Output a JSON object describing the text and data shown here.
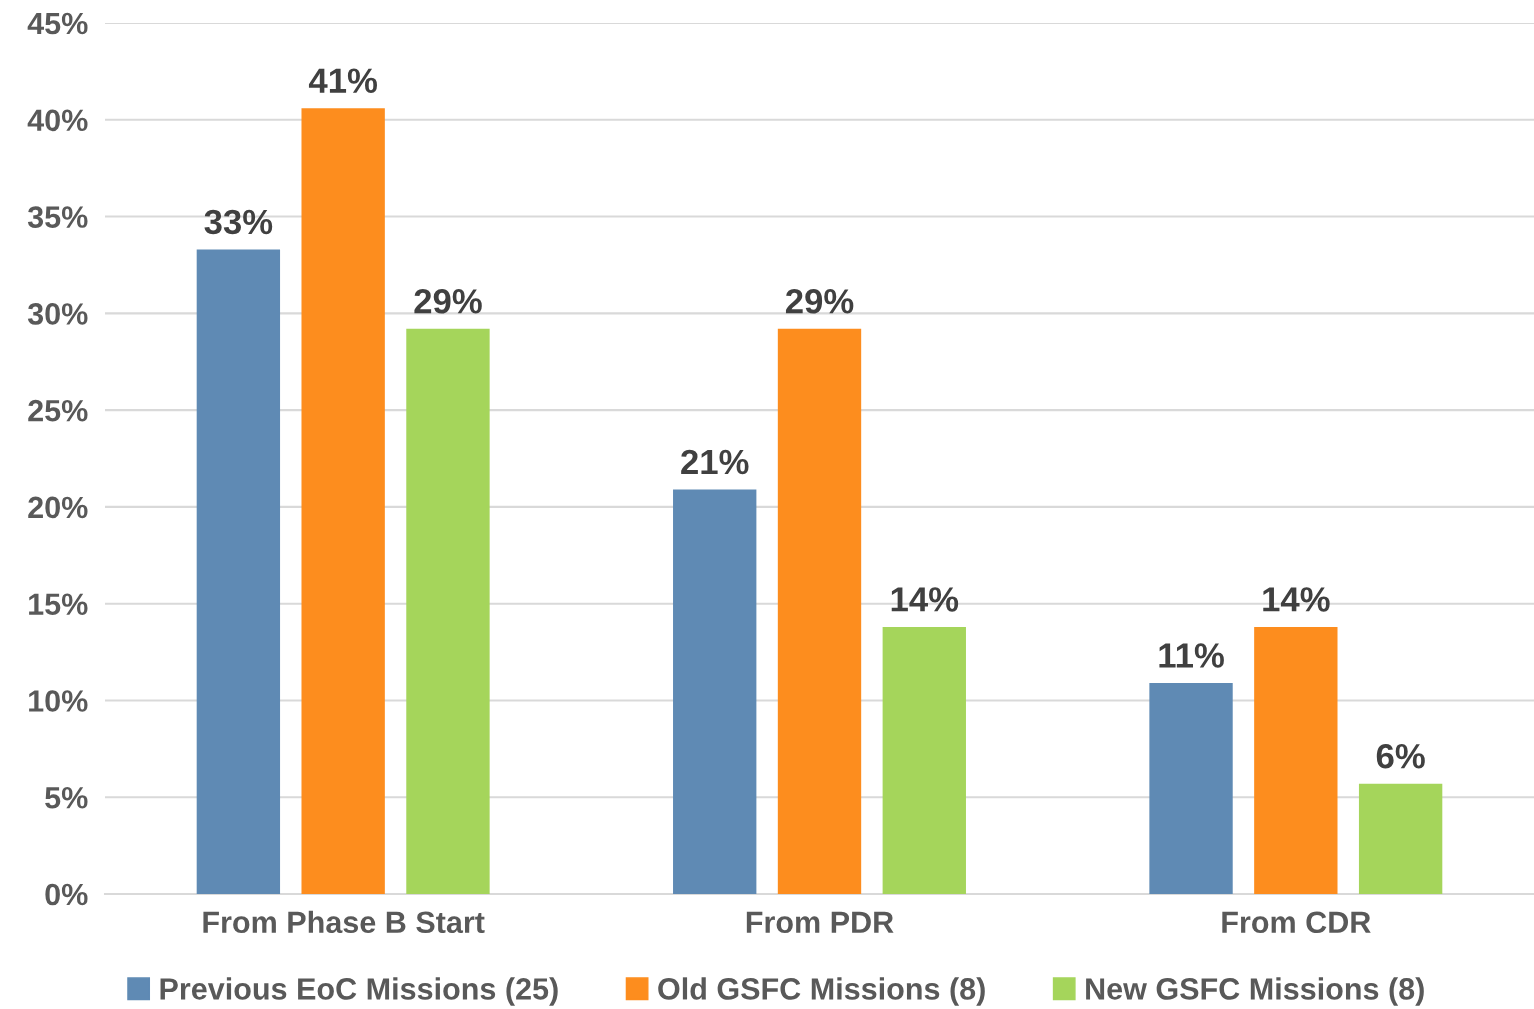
{
  "chart_data": {
    "type": "bar",
    "categories": [
      "From Phase B Start",
      "From PDR",
      "From CDR"
    ],
    "series": [
      {
        "name": "Previous EoC Missions (25)",
        "color": "#5f8ab4",
        "values": [
          33.3,
          20.9,
          10.9
        ],
        "value_labels": [
          "33%",
          "21%",
          "11%"
        ]
      },
      {
        "name": "Old GSFC Missions (8)",
        "color": "#fd8d1e",
        "values": [
          40.6,
          29.2,
          13.8
        ],
        "value_labels": [
          "41%",
          "29%",
          "14%"
        ]
      },
      {
        "name": "New GSFC Missions (8)",
        "color": "#a5d55b",
        "values": [
          29.2,
          13.8,
          5.7
        ],
        "value_labels": [
          "29%",
          "14%",
          "6%"
        ]
      }
    ],
    "ylim": [
      0,
      45
    ],
    "yticks": [
      {
        "value": 0,
        "label": "0%"
      },
      {
        "value": 5,
        "label": "5%"
      },
      {
        "value": 10,
        "label": "10%"
      },
      {
        "value": 15,
        "label": "15%"
      },
      {
        "value": 20,
        "label": "20%"
      },
      {
        "value": 25,
        "label": "25%"
      },
      {
        "value": 30,
        "label": "30%"
      },
      {
        "value": 35,
        "label": "35%"
      },
      {
        "value": 40,
        "label": "40%"
      },
      {
        "value": 45,
        "label": "45%"
      }
    ],
    "grid": "y",
    "legend": "bottom"
  }
}
